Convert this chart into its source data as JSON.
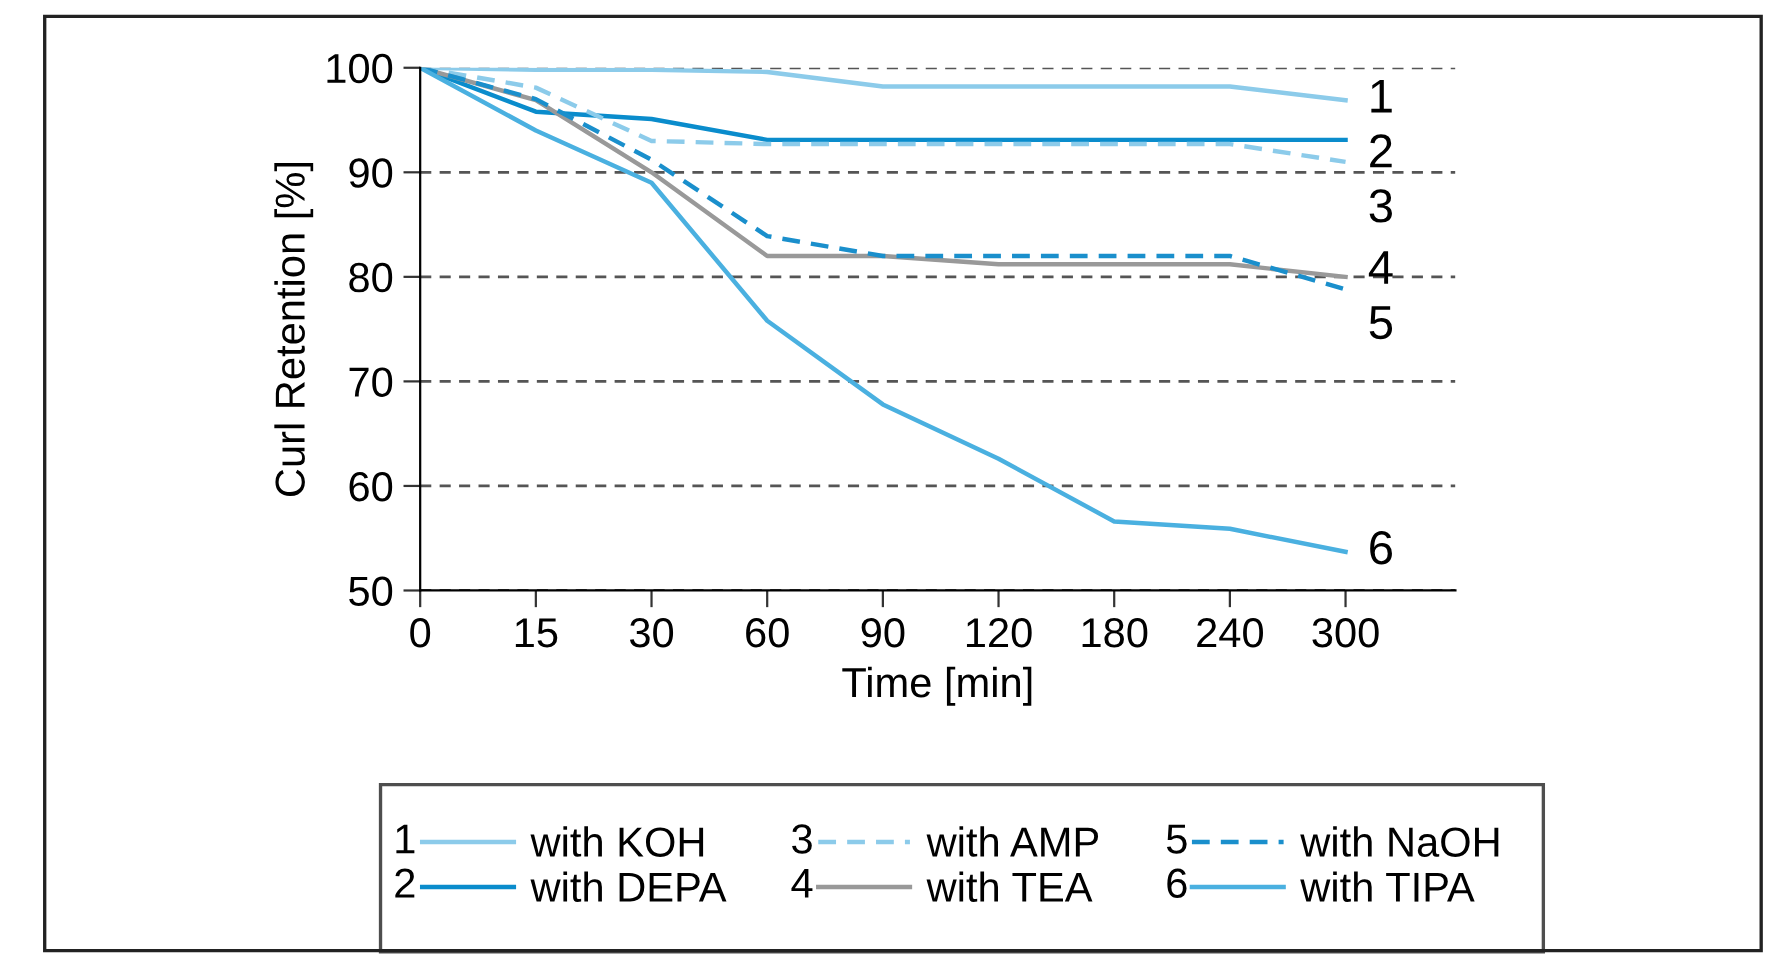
{
  "chart_data": {
    "type": "line",
    "xlabel": "Time [min]",
    "ylabel": "Curl Retention [%]",
    "categories": [
      "0",
      "15",
      "30",
      "60",
      "90",
      "120",
      "180",
      "240",
      "300"
    ],
    "ylim": [
      50,
      100
    ],
    "yticks": [
      50,
      60,
      70,
      80,
      90,
      100
    ],
    "grid": "y",
    "legend": "bottom",
    "marker": "none",
    "series": [
      {
        "name": "with KOH",
        "color": "#8ccbea",
        "line_style": "solid",
        "values": [
          100,
          99.8,
          99.8,
          99.6,
          98.2,
          98.2,
          98.2,
          98.2,
          96.9
        ]
      },
      {
        "name": "with DEPA",
        "color": "#0a8ccc",
        "line_style": "solid",
        "values": [
          100,
          95.8,
          95.1,
          93.1,
          93.1,
          93.1,
          93.1,
          93.1,
          93.1
        ]
      },
      {
        "name": "with AMP",
        "color": "#8ccbea",
        "line_style": "dashed",
        "values": [
          100,
          98.1,
          93,
          92.7,
          92.7,
          92.7,
          92.7,
          92.7,
          91
        ]
      },
      {
        "name": "with TEA",
        "color": "#999999",
        "line_style": "solid",
        "values": [
          100,
          96.9,
          90,
          82,
          82,
          81.2,
          81.2,
          81.2,
          80
        ]
      },
      {
        "name": "with NaOH",
        "color": "#1a8fcc",
        "line_style": "dashed",
        "values": [
          100,
          97,
          91.2,
          83.9,
          82,
          82,
          82,
          82,
          78.8
        ]
      },
      {
        "name": "with TIPA",
        "color": "#4ab0e0",
        "line_style": "solid",
        "values": [
          100,
          94,
          89,
          75.8,
          67.8,
          62.6,
          56.6,
          55.9,
          53.7
        ]
      }
    ],
    "annotations": [
      {
        "text": "1",
        "x": "300",
        "y": 96.9
      },
      {
        "text": "2",
        "x": "300",
        "y": 93.1
      },
      {
        "text": "3",
        "x": "300",
        "y": 91
      },
      {
        "text": "4",
        "x": "300",
        "y": 80.5
      },
      {
        "text": "5",
        "x": "300",
        "y": 78.8
      },
      {
        "text": "6",
        "x": "300",
        "y": 53.7
      }
    ]
  }
}
